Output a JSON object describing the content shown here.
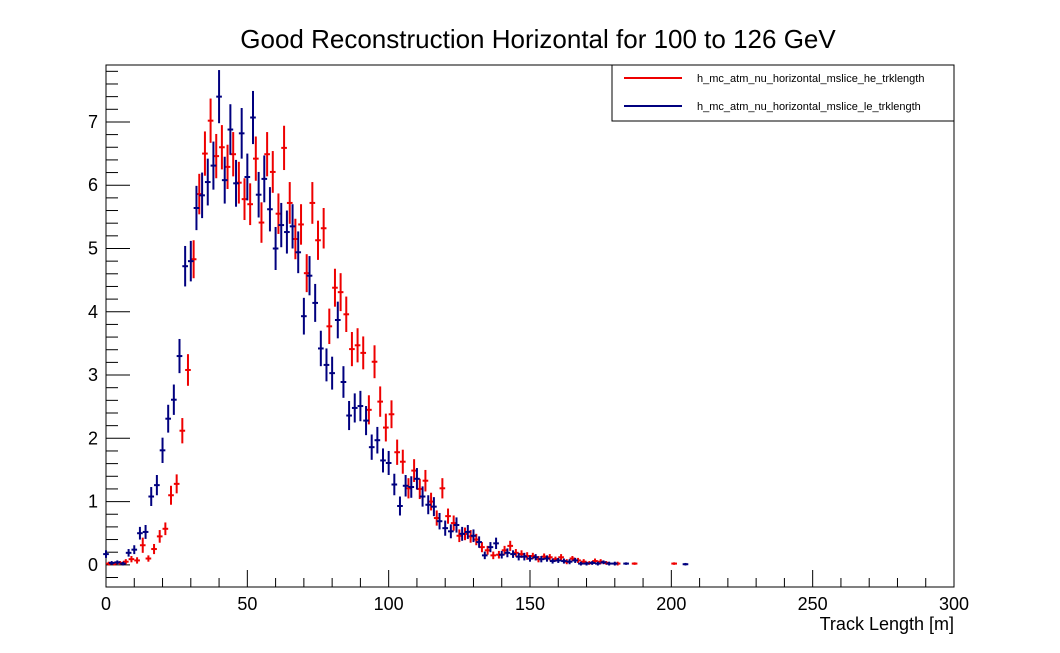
{
  "chart_data": {
    "type": "scatter",
    "title": "Good Reconstruction Horizontal for 100 to 126 GeV",
    "xlabel": "Track Length [m]",
    "ylabel": "",
    "xlim": [
      0,
      300
    ],
    "ylim": [
      -0.35,
      7.9
    ],
    "x_ticks": [
      "0",
      "50",
      "100",
      "150",
      "200",
      "250",
      "300"
    ],
    "y_ticks": [
      "0",
      "1",
      "2",
      "3",
      "4",
      "5",
      "6",
      "7"
    ],
    "legend_position": "top-right",
    "grid": false,
    "series": [
      {
        "name": "h_mc_atm_nu_horizontal_mslice_he_trklength",
        "color": "#ee0000",
        "x_error": 0.5,
        "points": [
          [
            1,
            0.02,
            0.03
          ],
          [
            3,
            0.02,
            0.03
          ],
          [
            5,
            0.03,
            0.03
          ],
          [
            7,
            0.05,
            0.04
          ],
          [
            9,
            0.09,
            0.05
          ],
          [
            11,
            0.07,
            0.05
          ],
          [
            13,
            0.31,
            0.12
          ],
          [
            15,
            0.1,
            0.05
          ],
          [
            17,
            0.25,
            0.08
          ],
          [
            19,
            0.45,
            0.1
          ],
          [
            21,
            0.57,
            0.1
          ],
          [
            23,
            1.1,
            0.15
          ],
          [
            25,
            1.28,
            0.15
          ],
          [
            27,
            2.12,
            0.2
          ],
          [
            29,
            3.08,
            0.25
          ],
          [
            31,
            4.83,
            0.3
          ],
          [
            33,
            5.86,
            0.32
          ],
          [
            35,
            6.5,
            0.35
          ],
          [
            37,
            7.02,
            0.35
          ],
          [
            39,
            6.46,
            0.35
          ],
          [
            41,
            6.6,
            0.35
          ],
          [
            43,
            6.29,
            0.35
          ],
          [
            45,
            6.49,
            0.35
          ],
          [
            47,
            6.04,
            0.33
          ],
          [
            49,
            5.78,
            0.33
          ],
          [
            51,
            5.7,
            0.33
          ],
          [
            53,
            6.42,
            0.35
          ],
          [
            55,
            5.41,
            0.32
          ],
          [
            57,
            6.49,
            0.35
          ],
          [
            59,
            6.21,
            0.33
          ],
          [
            61,
            5.55,
            0.32
          ],
          [
            63,
            6.59,
            0.35
          ],
          [
            65,
            5.72,
            0.33
          ],
          [
            67,
            5.15,
            0.32
          ],
          [
            69,
            5.38,
            0.32
          ],
          [
            71,
            4.61,
            0.3
          ],
          [
            73,
            5.72,
            0.33
          ],
          [
            75,
            5.13,
            0.31
          ],
          [
            77,
            5.32,
            0.32
          ],
          [
            79,
            3.77,
            0.28
          ],
          [
            81,
            4.38,
            0.3
          ],
          [
            83,
            4.31,
            0.3
          ],
          [
            85,
            3.96,
            0.28
          ],
          [
            87,
            3.41,
            0.27
          ],
          [
            89,
            3.47,
            0.27
          ],
          [
            91,
            3.35,
            0.26
          ],
          [
            93,
            2.45,
            0.23
          ],
          [
            95,
            3.21,
            0.26
          ],
          [
            97,
            2.58,
            0.24
          ],
          [
            99,
            2.17,
            0.22
          ],
          [
            101,
            2.38,
            0.22
          ],
          [
            103,
            1.78,
            0.2
          ],
          [
            105,
            1.63,
            0.19
          ],
          [
            107,
            1.21,
            0.16
          ],
          [
            109,
            1.49,
            0.18
          ],
          [
            111,
            1.2,
            0.16
          ],
          [
            113,
            1.33,
            0.17
          ],
          [
            115,
            1.0,
            0.14
          ],
          [
            117,
            0.74,
            0.12
          ],
          [
            119,
            1.21,
            0.16
          ],
          [
            121,
            0.77,
            0.12
          ],
          [
            123,
            0.66,
            0.12
          ],
          [
            125,
            0.46,
            0.1
          ],
          [
            127,
            0.49,
            0.1
          ],
          [
            129,
            0.45,
            0.1
          ],
          [
            131,
            0.4,
            0.09
          ],
          [
            133,
            0.28,
            0.08
          ],
          [
            135,
            0.23,
            0.07
          ],
          [
            137,
            0.15,
            0.06
          ],
          [
            139,
            0.16,
            0.06
          ],
          [
            141,
            0.23,
            0.07
          ],
          [
            143,
            0.3,
            0.08
          ],
          [
            145,
            0.19,
            0.06
          ],
          [
            147,
            0.17,
            0.06
          ],
          [
            149,
            0.14,
            0.06
          ],
          [
            151,
            0.14,
            0.05
          ],
          [
            153,
            0.09,
            0.05
          ],
          [
            155,
            0.13,
            0.05
          ],
          [
            157,
            0.12,
            0.05
          ],
          [
            159,
            0.09,
            0.04
          ],
          [
            161,
            0.12,
            0.05
          ],
          [
            163,
            0.05,
            0.04
          ],
          [
            165,
            0.1,
            0.04
          ],
          [
            167,
            0.07,
            0.04
          ],
          [
            169,
            0.05,
            0.04
          ],
          [
            171,
            0.03,
            0.03
          ],
          [
            173,
            0.06,
            0.04
          ],
          [
            175,
            0.05,
            0.04
          ],
          [
            177,
            0.03,
            0.03
          ],
          [
            181,
            0.02,
            0.03
          ],
          [
            187,
            0.02,
            0.02
          ],
          [
            201,
            0.02,
            0.02
          ]
        ]
      },
      {
        "name": "h_mc_atm_nu_horizontal_mslice_le_trklength",
        "color": "#00007f",
        "x_error": 0.5,
        "points": [
          [
            0,
            0.17,
            0.06
          ],
          [
            2,
            0.03,
            0.03
          ],
          [
            4,
            0.04,
            0.03
          ],
          [
            6,
            0.02,
            0.03
          ],
          [
            8,
            0.19,
            0.06
          ],
          [
            10,
            0.24,
            0.07
          ],
          [
            12,
            0.5,
            0.1
          ],
          [
            14,
            0.52,
            0.11
          ],
          [
            16,
            1.08,
            0.15
          ],
          [
            18,
            1.26,
            0.16
          ],
          [
            20,
            1.81,
            0.2
          ],
          [
            22,
            2.31,
            0.22
          ],
          [
            24,
            2.61,
            0.24
          ],
          [
            26,
            3.3,
            0.27
          ],
          [
            28,
            4.72,
            0.32
          ],
          [
            30,
            4.8,
            0.32
          ],
          [
            32,
            5.64,
            0.35
          ],
          [
            34,
            5.84,
            0.36
          ],
          [
            36,
            6.05,
            0.37
          ],
          [
            38,
            6.31,
            0.38
          ],
          [
            40,
            7.4,
            0.42
          ],
          [
            42,
            6.08,
            0.37
          ],
          [
            44,
            6.88,
            0.4
          ],
          [
            46,
            6.03,
            0.37
          ],
          [
            48,
            6.82,
            0.4
          ],
          [
            50,
            6.13,
            0.37
          ],
          [
            52,
            7.07,
            0.42
          ],
          [
            54,
            5.85,
            0.36
          ],
          [
            56,
            6.1,
            0.37
          ],
          [
            58,
            5.62,
            0.35
          ],
          [
            60,
            5.0,
            0.34
          ],
          [
            62,
            5.37,
            0.35
          ],
          [
            64,
            5.26,
            0.34
          ],
          [
            66,
            5.35,
            0.35
          ],
          [
            68,
            4.94,
            0.33
          ],
          [
            70,
            3.93,
            0.29
          ],
          [
            72,
            4.57,
            0.31
          ],
          [
            74,
            4.14,
            0.3
          ],
          [
            76,
            3.42,
            0.28
          ],
          [
            78,
            3.16,
            0.26
          ],
          [
            80,
            3.03,
            0.26
          ],
          [
            82,
            3.87,
            0.29
          ],
          [
            84,
            2.89,
            0.25
          ],
          [
            86,
            2.36,
            0.23
          ],
          [
            88,
            2.48,
            0.23
          ],
          [
            90,
            2.51,
            0.24
          ],
          [
            92,
            2.28,
            0.23
          ],
          [
            94,
            1.86,
            0.2
          ],
          [
            96,
            1.97,
            0.21
          ],
          [
            98,
            1.65,
            0.19
          ],
          [
            100,
            1.61,
            0.19
          ],
          [
            102,
            1.27,
            0.17
          ],
          [
            104,
            0.93,
            0.15
          ],
          [
            106,
            1.25,
            0.17
          ],
          [
            108,
            1.23,
            0.17
          ],
          [
            110,
            1.36,
            0.17
          ],
          [
            112,
            1.08,
            0.16
          ],
          [
            114,
            0.95,
            0.15
          ],
          [
            116,
            0.92,
            0.15
          ],
          [
            118,
            0.69,
            0.13
          ],
          [
            120,
            0.58,
            0.12
          ],
          [
            122,
            0.53,
            0.11
          ],
          [
            124,
            0.63,
            0.12
          ],
          [
            126,
            0.49,
            0.11
          ],
          [
            128,
            0.52,
            0.11
          ],
          [
            130,
            0.46,
            0.1
          ],
          [
            132,
            0.36,
            0.09
          ],
          [
            134,
            0.15,
            0.06
          ],
          [
            136,
            0.28,
            0.08
          ],
          [
            138,
            0.34,
            0.09
          ],
          [
            140,
            0.16,
            0.06
          ],
          [
            142,
            0.19,
            0.07
          ],
          [
            144,
            0.17,
            0.06
          ],
          [
            146,
            0.13,
            0.06
          ],
          [
            148,
            0.13,
            0.06
          ],
          [
            150,
            0.1,
            0.05
          ],
          [
            152,
            0.12,
            0.05
          ],
          [
            154,
            0.09,
            0.05
          ],
          [
            156,
            0.1,
            0.05
          ],
          [
            158,
            0.06,
            0.04
          ],
          [
            160,
            0.07,
            0.04
          ],
          [
            162,
            0.06,
            0.04
          ],
          [
            164,
            0.05,
            0.04
          ],
          [
            166,
            0.07,
            0.04
          ],
          [
            168,
            0.02,
            0.03
          ],
          [
            170,
            0.02,
            0.03
          ],
          [
            172,
            0.03,
            0.03
          ],
          [
            174,
            0.02,
            0.03
          ],
          [
            176,
            0.04,
            0.03
          ],
          [
            178,
            0.02,
            0.03
          ],
          [
            180,
            0.02,
            0.03
          ],
          [
            184,
            0.02,
            0.02
          ],
          [
            205,
            0.01,
            0.02
          ]
        ]
      }
    ]
  }
}
